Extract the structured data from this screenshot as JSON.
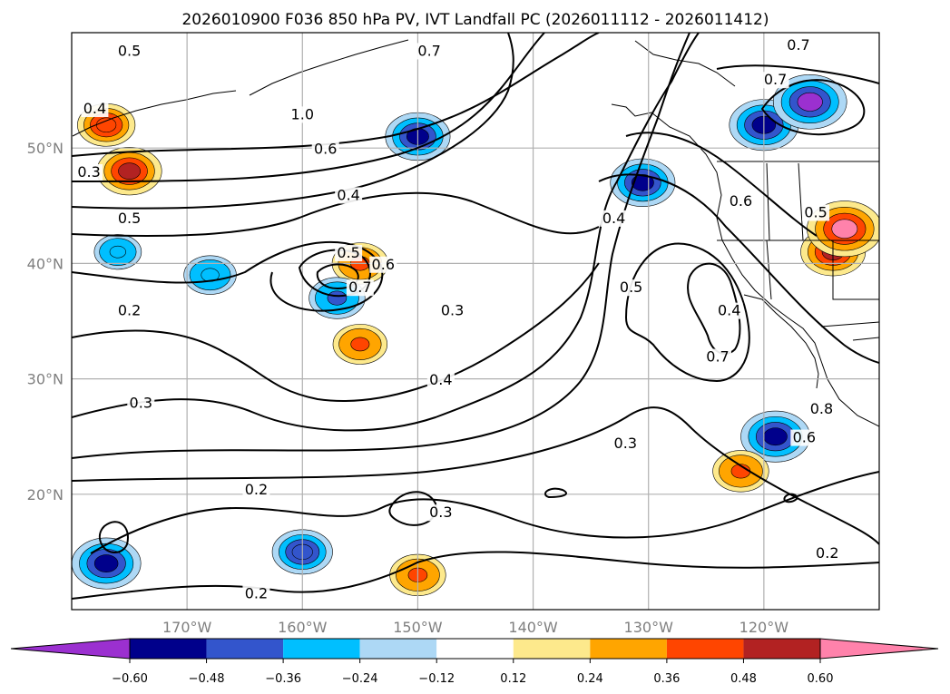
{
  "chart_data": {
    "type": "contour-map",
    "title": "2026010900 F036 850 hPa PV, IVT Landfall PC (2026011112 - 2026011412)",
    "lon_range": [
      -180,
      -110
    ],
    "lat_range": [
      10,
      60
    ],
    "xticks": [
      {
        "lon": -170,
        "label": "170°W"
      },
      {
        "lon": -160,
        "label": "160°W"
      },
      {
        "lon": -150,
        "label": "150°W"
      },
      {
        "lon": -140,
        "label": "140°W"
      },
      {
        "lon": -130,
        "label": "130°W"
      },
      {
        "lon": -120,
        "label": "120°W"
      }
    ],
    "yticks": [
      {
        "lat": 20,
        "label": "20°N"
      },
      {
        "lat": 30,
        "label": "30°N"
      },
      {
        "lat": 40,
        "label": "40°N"
      },
      {
        "lat": 50,
        "label": "50°N"
      }
    ],
    "grid": true,
    "colorbar": {
      "levels": [
        -0.72,
        -0.6,
        -0.48,
        -0.36,
        -0.24,
        -0.12,
        0.12,
        0.24,
        0.36,
        0.48,
        0.6,
        0.72
      ],
      "tick_labels": [
        "−0.60",
        "−0.48",
        "−0.36",
        "−0.24",
        "−0.12",
        "0.12",
        "0.24",
        "0.36",
        "0.48",
        "0.60"
      ],
      "colors": [
        "#9b30d0",
        "#00008b",
        "#3355cc",
        "#00bfff",
        "#add8f5",
        "#ffffff",
        "#fde98c",
        "#ffa500",
        "#ff4500",
        "#b22222",
        "#ff82ab"
      ],
      "extend": "both"
    },
    "shaded_features": [
      {
        "lon": -177,
        "lat": 52,
        "value": 0.42
      },
      {
        "lon": -175,
        "lat": 48,
        "value": 0.5
      },
      {
        "lon": -176,
        "lat": 41,
        "value": -0.3
      },
      {
        "lon": -168,
        "lat": 39,
        "value": -0.36
      },
      {
        "lon": -150,
        "lat": 51,
        "value": -0.5
      },
      {
        "lon": -155,
        "lat": 40,
        "value": 0.4
      },
      {
        "lon": -157,
        "lat": 37,
        "value": -0.4
      },
      {
        "lon": -130.5,
        "lat": 47,
        "value": -0.5
      },
      {
        "lon": -120,
        "lat": 52,
        "value": -0.55
      },
      {
        "lon": -116,
        "lat": 54,
        "value": -0.6
      },
      {
        "lon": -114,
        "lat": 41,
        "value": 0.5
      },
      {
        "lon": -113,
        "lat": 43,
        "value": 0.62
      },
      {
        "lon": -119,
        "lat": 25,
        "value": -0.55
      },
      {
        "lon": -177,
        "lat": 14,
        "value": -0.55
      },
      {
        "lon": -160,
        "lat": 15,
        "value": -0.45
      },
      {
        "lon": -122,
        "lat": 22,
        "value": 0.4
      },
      {
        "lon": -150,
        "lat": 13,
        "value": 0.4
      },
      {
        "lon": -155,
        "lat": 33,
        "value": 0.38
      }
    ],
    "contour_labels": [
      "0.2",
      "0.3",
      "0.4",
      "0.5",
      "0.6",
      "0.7",
      "0.8",
      "1.0"
    ],
    "contour_levels": [
      0.2,
      0.3,
      0.4,
      0.5,
      0.6,
      0.7,
      0.8,
      1.0,
      1.4
    ]
  }
}
